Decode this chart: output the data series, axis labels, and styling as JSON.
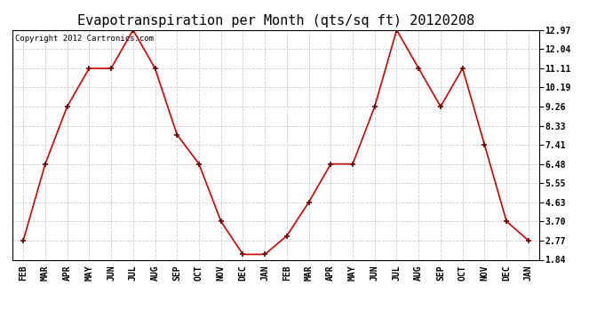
{
  "title": "Evapotranspiration per Month (qts/sq ft) 20120208",
  "copyright_text": "Copyright 2012 Cartronics.com",
  "x_labels": [
    "FEB",
    "MAR",
    "APR",
    "MAY",
    "JUN",
    "JUL",
    "AUG",
    "SEP",
    "OCT",
    "NOV",
    "DEC",
    "JAN",
    "FEB",
    "MAR",
    "APR",
    "MAY",
    "JUN",
    "JUL",
    "AUG",
    "SEP",
    "OCT",
    "NOV",
    "DEC",
    "JAN"
  ],
  "y_data": [
    2.77,
    6.48,
    9.26,
    11.11,
    11.11,
    12.97,
    11.11,
    7.9,
    6.48,
    3.7,
    2.1,
    2.1,
    3.0,
    4.63,
    6.48,
    6.48,
    9.26,
    12.97,
    11.11,
    9.26,
    11.11,
    7.41,
    3.7,
    2.77
  ],
  "yticks": [
    1.84,
    2.77,
    3.7,
    4.63,
    5.55,
    6.48,
    7.41,
    8.33,
    9.26,
    10.19,
    11.11,
    12.04,
    12.97
  ],
  "ytick_labels": [
    "1.84",
    "2.77",
    "3.70",
    "4.63",
    "5.55",
    "6.48",
    "7.41",
    "8.33",
    "9.26",
    "10.19",
    "11.11",
    "12.04",
    "12.97"
  ],
  "line_color": "#cc0000",
  "marker_color": "#660000",
  "background_color": "#ffffff",
  "grid_color": "#cccccc",
  "title_fontsize": 11,
  "copyright_fontsize": 6.5,
  "tick_fontsize": 7,
  "ymin": 1.84,
  "ymax": 12.97
}
